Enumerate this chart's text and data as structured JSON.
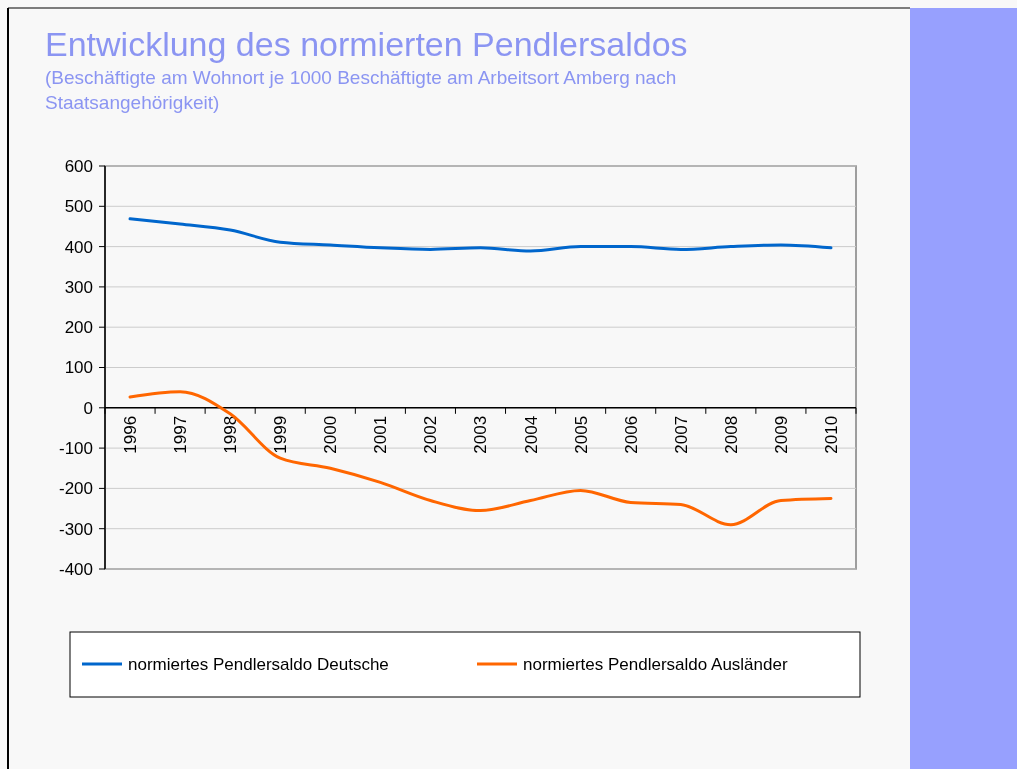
{
  "chart_data": {
    "type": "line",
    "title": "Entwicklung des normierten Pendlersaldos",
    "subtitle": "(Beschäftigte am Wohnort je 1000 Beschäftigte am Arbeitsort Amberg nach Staatsangehörigkeit)",
    "categories": [
      "1996",
      "1997",
      "1998",
      "1999",
      "2000",
      "2001",
      "2002",
      "2003",
      "2004",
      "2005",
      "2006",
      "2007",
      "2008",
      "2009",
      "2010"
    ],
    "series": [
      {
        "name": "normiertes Pendlersaldo Deutsche",
        "color": "#0066cc",
        "values": [
          469,
          456,
          441,
          411,
          404,
          397,
          393,
          397,
          389,
          400,
          400,
          393,
          400,
          404,
          397
        ]
      },
      {
        "name": "normiertes Pendlersaldo Ausländer",
        "color": "#ff6600",
        "values": [
          27,
          40,
          -15,
          -125,
          -150,
          -185,
          -230,
          -255,
          -230,
          -205,
          -235,
          -240,
          -290,
          -230,
          -225
        ]
      }
    ],
    "ylim": [
      -400,
      600
    ],
    "yticks": [
      -400,
      -300,
      -200,
      -100,
      0,
      100,
      200,
      300,
      400,
      500,
      600
    ],
    "grid": "y",
    "legend": "bottom",
    "marker": "none",
    "line_style": "solid"
  }
}
